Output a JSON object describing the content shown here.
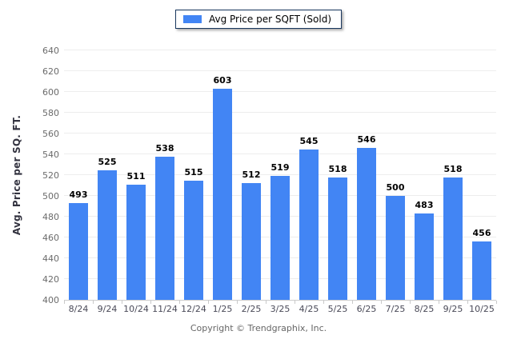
{
  "legend": {
    "label": "Avg Price per SQFT (Sold)"
  },
  "chart_data": {
    "type": "bar",
    "title": "",
    "categories": [
      "8/24",
      "9/24",
      "10/24",
      "11/24",
      "12/24",
      "1/25",
      "2/25",
      "3/25",
      "4/25",
      "5/25",
      "6/25",
      "7/25",
      "8/25",
      "9/25",
      "10/25"
    ],
    "values": [
      493,
      525,
      511,
      538,
      515,
      603,
      512,
      519,
      545,
      518,
      546,
      500,
      483,
      518,
      456
    ],
    "series_name": "Avg Price per SQFT (Sold)",
    "xlabel": "",
    "ylabel": "Avg. Price per SQ. FT.",
    "ylim": [
      400,
      640
    ],
    "yticks": [
      400,
      420,
      440,
      460,
      480,
      500,
      520,
      540,
      560,
      580,
      600,
      620,
      640
    ],
    "grid": true,
    "legend_position": "top-center",
    "bar_color": "#4285f4"
  },
  "colors": {
    "bar": "#4285f4",
    "legend_border": "#17365d",
    "gridline": "#ededed",
    "axis_line": "#cccccc",
    "y_tick_label": "#6b6b6b",
    "x_tick_label": "#4a4a58",
    "value_label": "#000000"
  },
  "footer": {
    "copyright": "Copyright © Trendgraphix, Inc."
  }
}
